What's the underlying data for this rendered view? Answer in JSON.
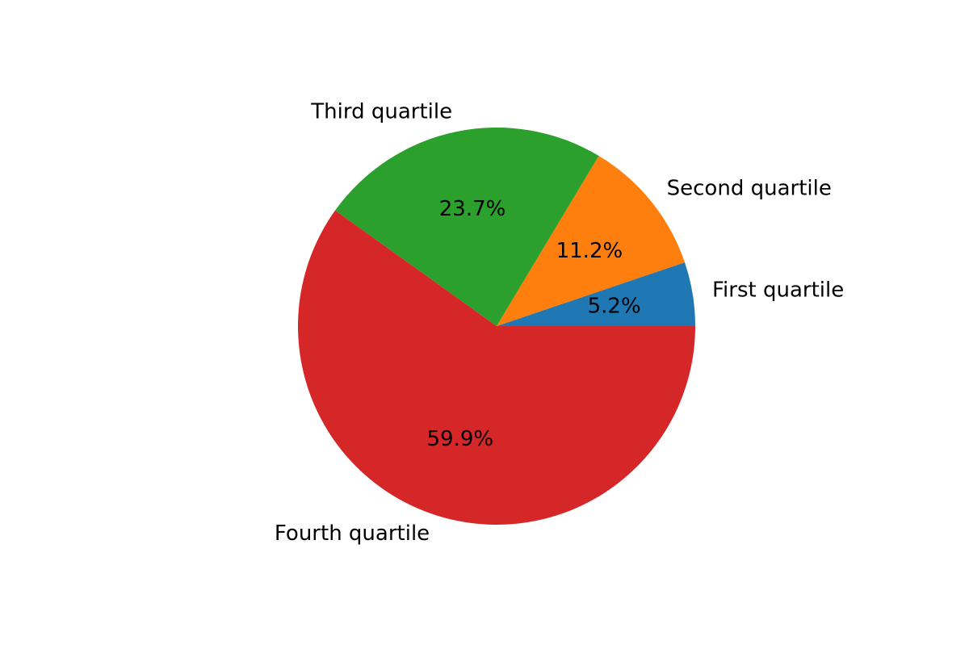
{
  "chart_data": {
    "type": "pie",
    "title": "",
    "categories": [
      "First quartile",
      "Second quartile",
      "Third quartile",
      "Fourth quartile"
    ],
    "values": [
      5.2,
      11.2,
      23.7,
      59.9
    ],
    "percent_labels": [
      "5.2%",
      "11.2%",
      "23.7%",
      "59.9%"
    ],
    "colors": [
      "#1f77b4",
      "#ff7f0e",
      "#2ca02c",
      "#d62728"
    ],
    "start_angle": 0,
    "direction": "counterclockwise",
    "legend": "none"
  }
}
